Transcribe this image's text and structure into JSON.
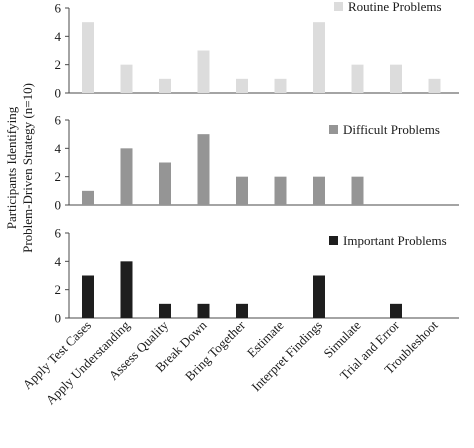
{
  "chart_data": {
    "type": "bar",
    "ylabel_lines": [
      "Participants Identifying",
      "Problem-Driven Strategy (n=10)"
    ],
    "categories": [
      "Apply Test Cases",
      "Apply Understanding",
      "Assess Quality",
      "Break Down",
      "Bring Together",
      "Estimate",
      "Interpret Findings",
      "Simulate",
      "Trial and Error",
      "Troubleshoot"
    ],
    "ylim": [
      0,
      6
    ],
    "yticks": [
      0,
      2,
      4,
      6
    ],
    "grid": false,
    "legend_placement": "top-right",
    "series": [
      {
        "name": "Routine Problems",
        "color": "#dcdcdc",
        "values": [
          5,
          2,
          1,
          3,
          1,
          1,
          5,
          2,
          2,
          1
        ]
      },
      {
        "name": "Difficult Problems",
        "color": "#959595",
        "values": [
          1,
          4,
          3,
          5,
          2,
          2,
          2,
          2,
          0,
          0
        ]
      },
      {
        "name": "Important Problems",
        "color": "#1e1e1e",
        "values": [
          3,
          4,
          1,
          1,
          1,
          0,
          3,
          0,
          1,
          0
        ]
      }
    ]
  }
}
